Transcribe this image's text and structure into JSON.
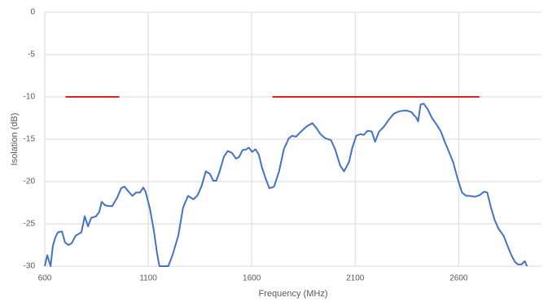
{
  "chart_data": {
    "type": "line",
    "xlabel": "Frequency (MHz)",
    "ylabel": "Isolation (dB)",
    "xlim": [
      600,
      3000
    ],
    "xticks": [
      600,
      1100,
      1600,
      2100,
      2600
    ],
    "ylim": [
      -30,
      0
    ],
    "yticks": [
      0,
      -5,
      -10,
      -15,
      -20,
      -25,
      -30
    ],
    "grid": true,
    "series": [
      {
        "color": "#4472c4",
        "x": [
          600,
          612,
          628,
          639,
          651,
          663,
          683,
          698,
          714,
          730,
          749,
          777,
          793,
          809,
          824,
          848,
          863,
          875,
          891,
          907,
          926,
          950,
          969,
          985,
          1005,
          1024,
          1040,
          1060,
          1076,
          1087,
          1107,
          1127,
          1142,
          1154,
          1197,
          1217,
          1245,
          1268,
          1292,
          1319,
          1339,
          1358,
          1378,
          1398,
          1414,
          1429,
          1445,
          1465,
          1484,
          1504,
          1524,
          1539,
          1555,
          1574,
          1586,
          1602,
          1618,
          1634,
          1649,
          1665,
          1685,
          1708,
          1732,
          1755,
          1779,
          1795,
          1814,
          1838,
          1865,
          1893,
          1913,
          1932,
          1956,
          1983,
          2003,
          2027,
          2046,
          2070,
          2086,
          2105,
          2125,
          2141,
          2160,
          2180,
          2196,
          2215,
          2239,
          2262,
          2286,
          2313,
          2345,
          2372,
          2396,
          2404,
          2416,
          2431,
          2451,
          2471,
          2494,
          2514,
          2534,
          2553,
          2573,
          2593,
          2616,
          2636,
          2655,
          2679,
          2702,
          2722,
          2738,
          2754,
          2773,
          2793,
          2817,
          2836,
          2856,
          2872,
          2887,
          2903,
          2919,
          2930
        ],
        "values": [
          -30,
          -28.7,
          -30,
          -27.6,
          -26.6,
          -26,
          -25.9,
          -27.2,
          -27.5,
          -27.3,
          -26.4,
          -26,
          -24.1,
          -25.3,
          -24.3,
          -24.1,
          -23.6,
          -22.4,
          -22.8,
          -22.9,
          -22.9,
          -21.9,
          -20.8,
          -20.6,
          -21.2,
          -21.7,
          -21.3,
          -21.3,
          -20.7,
          -21.2,
          -23.1,
          -25.8,
          -28.4,
          -30,
          -30,
          -28.7,
          -26.4,
          -23.1,
          -21.7,
          -22.1,
          -21.6,
          -20.5,
          -18.8,
          -19.1,
          -19.9,
          -19.9,
          -18.8,
          -17.1,
          -16.4,
          -16.6,
          -17.3,
          -17.1,
          -16.3,
          -16.2,
          -16,
          -16.5,
          -16.2,
          -16.8,
          -18.3,
          -19.5,
          -20.8,
          -20.6,
          -18.8,
          -16.2,
          -14.9,
          -14.6,
          -14.7,
          -14.1,
          -13.5,
          -13.1,
          -13.7,
          -14.4,
          -14.9,
          -15.1,
          -16.2,
          -18.1,
          -18.8,
          -17.7,
          -16,
          -14.6,
          -14.4,
          -14.5,
          -14,
          -14.1,
          -15.3,
          -14.1,
          -13.5,
          -12.7,
          -12,
          -11.7,
          -11.6,
          -11.8,
          -12.5,
          -12.9,
          -10.9,
          -10.8,
          -11.5,
          -12.5,
          -13.3,
          -14.1,
          -15.4,
          -16.5,
          -17.7,
          -19.5,
          -21.3,
          -21.7,
          -21.7,
          -21.8,
          -21.6,
          -21.2,
          -21.3,
          -22.9,
          -24.5,
          -25.6,
          -26.4,
          -27.6,
          -28.8,
          -29.5,
          -29.8,
          -29.8,
          -29.4,
          -30
        ]
      },
      {
        "color": "#e02020",
        "x": [
          700,
          960
        ],
        "values": [
          -10,
          -10
        ]
      },
      {
        "color": "#e02020",
        "x": [
          1700,
          2700
        ],
        "values": [
          -10,
          -10
        ]
      }
    ]
  }
}
